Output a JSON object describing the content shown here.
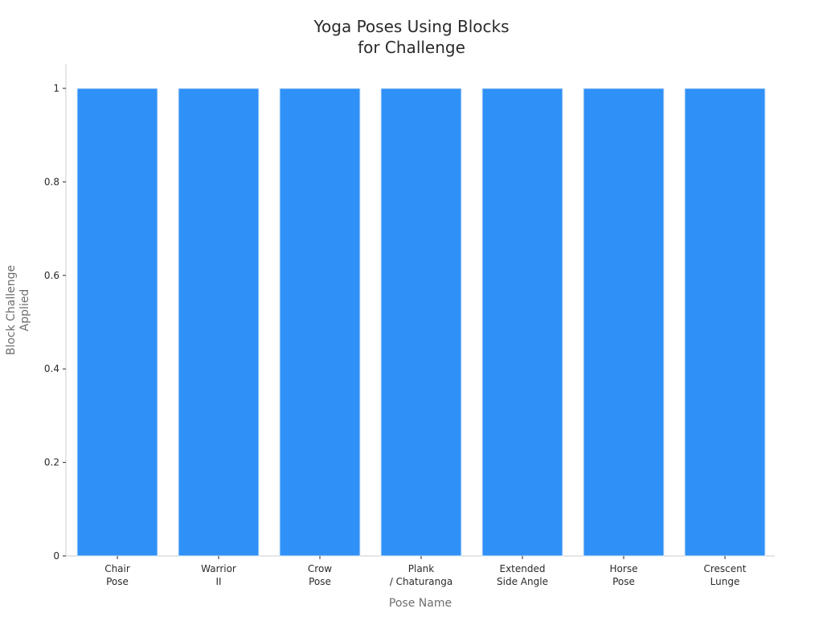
{
  "chart_data": {
    "type": "bar",
    "title": [
      "Yoga Poses Using Blocks",
      "for Challenge"
    ],
    "xlabel": "Pose Name",
    "ylabel": [
      "Block Challenge",
      "Applied"
    ],
    "categories": [
      [
        "Chair",
        "Pose"
      ],
      [
        "Warrior",
        "II"
      ],
      [
        "Crow",
        "Pose"
      ],
      [
        "Plank",
        "/ Chaturanga"
      ],
      [
        "Extended",
        "Side Angle"
      ],
      [
        "Horse",
        "Pose"
      ],
      [
        "Crescent",
        "Lunge"
      ]
    ],
    "values": [
      1,
      1,
      1,
      1,
      1,
      1,
      1
    ],
    "ylim": [
      0,
      1.05
    ],
    "yticks": [
      0,
      0.2,
      0.4,
      0.6,
      0.8,
      1
    ],
    "ytick_labels": [
      "0",
      "0.2",
      "0.4",
      "0.6",
      "0.8",
      "1"
    ],
    "grid": false,
    "colors": {
      "bar": "#2f91f7",
      "bar_edge": "#d8e8f7",
      "axis": "#cccccc",
      "text": "#2a2a2a",
      "axis_label": "#6e6e6e"
    }
  }
}
